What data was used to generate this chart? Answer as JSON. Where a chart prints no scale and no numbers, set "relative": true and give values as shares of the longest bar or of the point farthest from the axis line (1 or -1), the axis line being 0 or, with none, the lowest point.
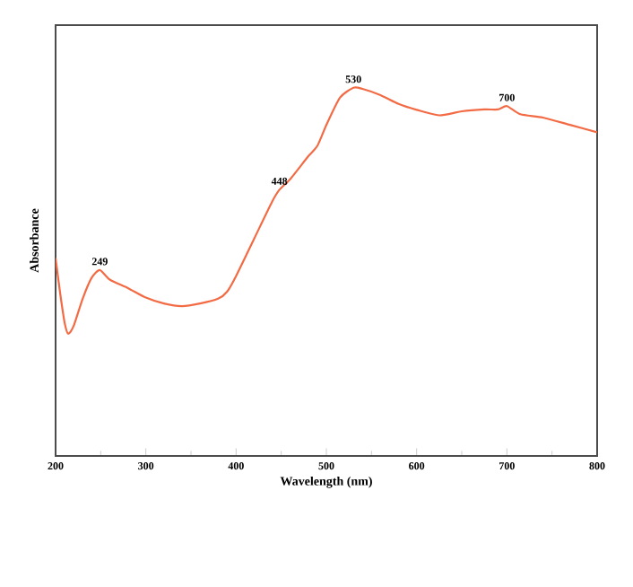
{
  "chart_data": {
    "type": "line",
    "xlabel": "Wavelength (nm)",
    "ylabel": "Absorbance",
    "relative": true,
    "xlim": [
      200,
      800
    ],
    "xticks": [
      200,
      300,
      400,
      500,
      600,
      700,
      800
    ],
    "series": [
      {
        "color": "#f26b45",
        "x": [
          200,
          205,
          210,
          214,
          220,
          230,
          240,
          249,
          260,
          280,
          300,
          320,
          340,
          360,
          380,
          390,
          400,
          420,
          440,
          448,
          460,
          480,
          490,
          500,
          515,
          530,
          540,
          560,
          580,
          600,
          625,
          650,
          675,
          690,
          700,
          715,
          740,
          770,
          800
        ],
        "values": [
          0.537,
          0.443,
          0.362,
          0.332,
          0.353,
          0.427,
          0.484,
          0.505,
          0.479,
          0.456,
          0.43,
          0.414,
          0.407,
          0.414,
          0.427,
          0.446,
          0.489,
          0.59,
          0.691,
          0.723,
          0.752,
          0.814,
          0.842,
          0.899,
          0.973,
          1.0,
          0.997,
          0.98,
          0.956,
          0.94,
          0.925,
          0.936,
          0.941,
          0.941,
          0.95,
          0.928,
          0.919,
          0.899,
          0.879
        ]
      }
    ],
    "annotations": [
      {
        "text": "249",
        "x": 249,
        "y": 0.505
      },
      {
        "text": "448",
        "x": 448,
        "y": 0.723
      },
      {
        "text": "530",
        "x": 530,
        "y": 1.0
      },
      {
        "text": "700",
        "x": 700,
        "y": 0.95
      }
    ],
    "grid": false
  }
}
